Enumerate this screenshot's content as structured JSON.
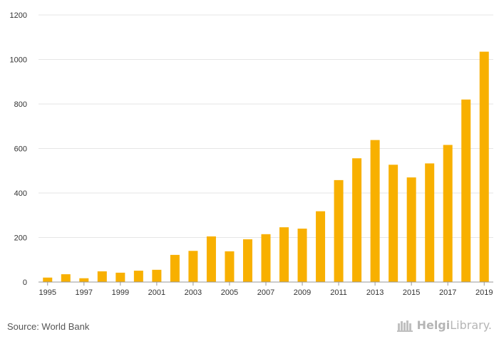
{
  "chart_data": {
    "type": "bar",
    "title": "",
    "xlabel": "",
    "ylabel": "",
    "ylim": [
      0,
      1200
    ],
    "yticks": [
      0,
      200,
      400,
      600,
      800,
      1000,
      1200
    ],
    "grid": true,
    "categories": [
      "1995",
      "1996",
      "1997",
      "1998",
      "1999",
      "2000",
      "2001",
      "2002",
      "2003",
      "2004",
      "2005",
      "2006",
      "2007",
      "2008",
      "2009",
      "2010",
      "2011",
      "2012",
      "2013",
      "2014",
      "2015",
      "2016",
      "2017",
      "2018",
      "2019"
    ],
    "xtick_labels": [
      "1995",
      "1997",
      "1999",
      "2001",
      "2003",
      "2005",
      "2007",
      "2009",
      "2011",
      "2013",
      "2015",
      "2017",
      "2019"
    ],
    "values": [
      20,
      35,
      17,
      48,
      42,
      51,
      55,
      122,
      140,
      205,
      138,
      192,
      215,
      246,
      240,
      318,
      458,
      556,
      638,
      527,
      470,
      533,
      616,
      820,
      1035
    ],
    "bar_color": "#F8B000"
  },
  "footer": {
    "source": "Source: World Bank",
    "brand_strong": "Helgi",
    "brand_rest": "Library."
  }
}
